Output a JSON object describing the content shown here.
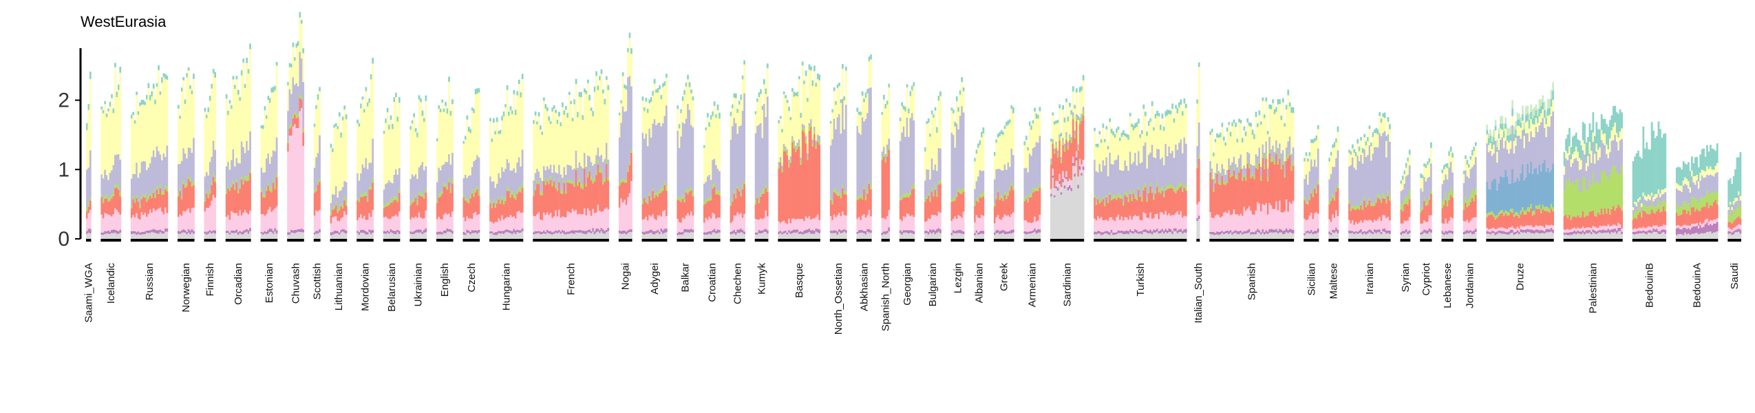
{
  "chart_data": {
    "type": "stacked-bar",
    "title": "WestEurasia",
    "xlabel": "",
    "ylabel": "",
    "ylim": [
      0,
      2.75
    ],
    "yticks": [
      0,
      1,
      2
    ],
    "grid": false,
    "legend": "none",
    "component_colors": [
      "#d9d9d9",
      "#bc80bd",
      "#fccde5",
      "#fb8072",
      "#b3de69",
      "#80b1d3",
      "#bebada",
      "#ffffb3",
      "#8dd3c7",
      "#fdb462",
      "#ccebc5"
    ],
    "note": "Values per population are approximate mean stacked heights read from the figure; each population is drawn as many individual sample bars.",
    "populations": [
      {
        "name": "Saami_WGA",
        "n": 3,
        "layers": [
          0.08,
          0.05,
          0.2,
          0.1,
          0.05,
          0.0,
          0.6,
          0.8,
          0.1,
          0.0,
          0.0
        ]
      },
      {
        "name": "Icelandic",
        "n": 12,
        "layers": [
          0.08,
          0.04,
          0.25,
          0.25,
          0.05,
          0.0,
          0.35,
          0.95,
          0.06,
          0.0,
          0.0
        ]
      },
      {
        "name": "Russian",
        "n": 22,
        "layers": [
          0.08,
          0.04,
          0.25,
          0.22,
          0.05,
          0.0,
          0.45,
          0.95,
          0.06,
          0.0,
          0.0
        ]
      },
      {
        "name": "Norwegian",
        "n": 10,
        "layers": [
          0.08,
          0.04,
          0.25,
          0.35,
          0.05,
          0.0,
          0.45,
          0.95,
          0.06,
          0.0,
          0.0
        ]
      },
      {
        "name": "Finnish",
        "n": 7,
        "layers": [
          0.08,
          0.04,
          0.45,
          0.2,
          0.05,
          0.0,
          0.35,
          0.95,
          0.06,
          0.0,
          0.0
        ]
      },
      {
        "name": "Orcadian",
        "n": 15,
        "layers": [
          0.08,
          0.04,
          0.25,
          0.4,
          0.05,
          0.0,
          0.4,
          0.95,
          0.06,
          0.0,
          0.0
        ]
      },
      {
        "name": "Estonian",
        "n": 10,
        "layers": [
          0.08,
          0.04,
          0.25,
          0.3,
          0.05,
          0.0,
          0.4,
          0.8,
          0.06,
          0.0,
          0.0
        ]
      },
      {
        "name": "Chuvash",
        "n": 10,
        "layers": [
          0.08,
          0.04,
          1.3,
          0.15,
          0.05,
          0.0,
          0.5,
          0.45,
          0.06,
          0.0,
          0.0
        ]
      },
      {
        "name": "Scottish",
        "n": 4,
        "layers": [
          0.08,
          0.04,
          0.3,
          0.35,
          0.05,
          0.0,
          0.45,
          0.7,
          0.06,
          0.0,
          0.0
        ]
      },
      {
        "name": "Lithuanian",
        "n": 10,
        "layers": [
          0.08,
          0.04,
          0.2,
          0.15,
          0.05,
          0.0,
          0.2,
          0.9,
          0.06,
          0.0,
          0.0
        ]
      },
      {
        "name": "Mordovian",
        "n": 10,
        "layers": [
          0.08,
          0.04,
          0.2,
          0.3,
          0.05,
          0.0,
          0.4,
          0.9,
          0.06,
          0.0,
          0.0
        ]
      },
      {
        "name": "Belarusian",
        "n": 10,
        "layers": [
          0.08,
          0.04,
          0.2,
          0.2,
          0.05,
          0.0,
          0.3,
          0.9,
          0.06,
          0.0,
          0.0
        ]
      },
      {
        "name": "Ukrainian",
        "n": 10,
        "layers": [
          0.08,
          0.04,
          0.2,
          0.25,
          0.05,
          0.0,
          0.35,
          0.8,
          0.06,
          0.0,
          0.0
        ]
      },
      {
        "name": "English",
        "n": 10,
        "layers": [
          0.08,
          0.04,
          0.2,
          0.35,
          0.05,
          0.0,
          0.35,
          0.8,
          0.06,
          0.0,
          0.0
        ]
      },
      {
        "name": "Czech",
        "n": 10,
        "layers": [
          0.08,
          0.04,
          0.2,
          0.3,
          0.05,
          0.0,
          0.35,
          0.75,
          0.06,
          0.0,
          0.0
        ]
      },
      {
        "name": "Hungarian",
        "n": 20,
        "layers": [
          0.08,
          0.04,
          0.2,
          0.3,
          0.05,
          0.0,
          0.35,
          0.8,
          0.06,
          0.0,
          0.0
        ]
      },
      {
        "name": "French",
        "n": 45,
        "layers": [
          0.08,
          0.04,
          0.25,
          0.45,
          0.05,
          0.0,
          0.2,
          0.85,
          0.06,
          0.0,
          0.0
        ]
      },
      {
        "name": "Nogai",
        "n": 8,
        "layers": [
          0.08,
          0.04,
          0.5,
          0.3,
          0.05,
          0.0,
          1.0,
          0.4,
          0.06,
          0.0,
          0.0
        ]
      },
      {
        "name": "Adygei",
        "n": 15,
        "layers": [
          0.08,
          0.04,
          0.2,
          0.3,
          0.05,
          0.0,
          0.95,
          0.45,
          0.06,
          0.0,
          0.0
        ]
      },
      {
        "name": "Balkar",
        "n": 10,
        "layers": [
          0.08,
          0.04,
          0.2,
          0.3,
          0.05,
          0.0,
          1.0,
          0.4,
          0.06,
          0.0,
          0.0
        ]
      },
      {
        "name": "Croatian",
        "n": 10,
        "layers": [
          0.08,
          0.04,
          0.2,
          0.3,
          0.05,
          0.0,
          0.3,
          0.75,
          0.06,
          0.0,
          0.0
        ]
      },
      {
        "name": "Chechen",
        "n": 9,
        "layers": [
          0.08,
          0.04,
          0.2,
          0.3,
          0.05,
          0.0,
          1.0,
          0.35,
          0.06,
          0.0,
          0.0
        ]
      },
      {
        "name": "Kumyk",
        "n": 8,
        "layers": [
          0.08,
          0.04,
          0.2,
          0.3,
          0.05,
          0.0,
          0.95,
          0.35,
          0.06,
          0.0,
          0.0
        ]
      },
      {
        "name": "Basque",
        "n": 25,
        "layers": [
          0.08,
          0.04,
          0.15,
          1.0,
          0.05,
          0.0,
          0.05,
          0.7,
          0.06,
          0.0,
          0.0
        ]
      },
      {
        "name": "North_Ossetian",
        "n": 10,
        "layers": [
          0.08,
          0.04,
          0.2,
          0.3,
          0.05,
          0.0,
          1.0,
          0.35,
          0.06,
          0.0,
          0.0
        ]
      },
      {
        "name": "Abkhasian",
        "n": 9,
        "layers": [
          0.08,
          0.04,
          0.2,
          0.3,
          0.05,
          0.0,
          1.0,
          0.3,
          0.06,
          0.0,
          0.0
        ]
      },
      {
        "name": "Spanish_North",
        "n": 5,
        "layers": [
          0.08,
          0.04,
          0.2,
          0.8,
          0.05,
          0.0,
          0.1,
          0.6,
          0.06,
          0.0,
          0.0
        ]
      },
      {
        "name": "Georgian",
        "n": 9,
        "layers": [
          0.08,
          0.04,
          0.2,
          0.3,
          0.05,
          0.0,
          0.95,
          0.35,
          0.06,
          0.0,
          0.0
        ]
      },
      {
        "name": "Bulgarian",
        "n": 10,
        "layers": [
          0.08,
          0.04,
          0.2,
          0.3,
          0.05,
          0.0,
          0.35,
          0.6,
          0.06,
          0.0,
          0.0
        ]
      },
      {
        "name": "Lezgin",
        "n": 8,
        "layers": [
          0.08,
          0.04,
          0.2,
          0.3,
          0.05,
          0.0,
          0.95,
          0.3,
          0.06,
          0.0,
          0.0
        ]
      },
      {
        "name": "Albanian",
        "n": 6,
        "layers": [
          0.08,
          0.04,
          0.2,
          0.3,
          0.05,
          0.0,
          0.3,
          0.45,
          0.06,
          0.0,
          0.0
        ]
      },
      {
        "name": "Greek",
        "n": 12,
        "layers": [
          0.08,
          0.04,
          0.2,
          0.3,
          0.05,
          0.0,
          0.35,
          0.5,
          0.06,
          0.0,
          0.0
        ]
      },
      {
        "name": "Armenian",
        "n": 10,
        "layers": [
          0.08,
          0.04,
          0.15,
          0.35,
          0.05,
          0.0,
          0.5,
          0.4,
          0.06,
          0.0,
          0.0
        ]
      },
      {
        "name": "Sardinian",
        "n": 20,
        "layers": [
          0.85,
          0.04,
          0.1,
          0.45,
          0.05,
          0.0,
          0.05,
          0.35,
          0.06,
          0.0,
          0.0
        ]
      },
      {
        "name": "Turkish",
        "n": 55,
        "layers": [
          0.08,
          0.04,
          0.2,
          0.3,
          0.05,
          0.0,
          0.5,
          0.45,
          0.06,
          0.0,
          0.0
        ]
      },
      {
        "name": "Italian_South",
        "n": 2,
        "layers": [
          0.3,
          0.04,
          0.2,
          0.5,
          0.05,
          0.0,
          0.4,
          0.6,
          0.06,
          0.0,
          0.0
        ]
      },
      {
        "name": "Spanish",
        "n": 50,
        "layers": [
          0.08,
          0.04,
          0.3,
          0.55,
          0.05,
          0.0,
          0.15,
          0.5,
          0.06,
          0.0,
          0.0
        ]
      },
      {
        "name": "Sicilian",
        "n": 9,
        "layers": [
          0.08,
          0.04,
          0.2,
          0.3,
          0.05,
          0.0,
          0.35,
          0.3,
          0.06,
          0.0,
          0.0
        ]
      },
      {
        "name": "Maltese",
        "n": 6,
        "layers": [
          0.08,
          0.04,
          0.2,
          0.3,
          0.05,
          0.0,
          0.4,
          0.25,
          0.06,
          0.0,
          0.0
        ]
      },
      {
        "name": "Iranian",
        "n": 25,
        "layers": [
          0.08,
          0.04,
          0.15,
          0.25,
          0.05,
          0.0,
          0.7,
          0.2,
          0.06,
          0.0,
          0.0
        ]
      },
      {
        "name": "Syrian",
        "n": 6,
        "layers": [
          0.08,
          0.04,
          0.15,
          0.2,
          0.1,
          0.0,
          0.25,
          0.15,
          0.06,
          0.0,
          0.0
        ]
      },
      {
        "name": "Cypriot",
        "n": 7,
        "layers": [
          0.08,
          0.04,
          0.15,
          0.25,
          0.05,
          0.0,
          0.3,
          0.2,
          0.06,
          0.0,
          0.0
        ]
      },
      {
        "name": "Lebanese",
        "n": 7,
        "layers": [
          0.08,
          0.04,
          0.15,
          0.25,
          0.1,
          0.0,
          0.3,
          0.15,
          0.06,
          0.0,
          0.0
        ]
      },
      {
        "name": "Jordanian",
        "n": 8,
        "layers": [
          0.08,
          0.04,
          0.15,
          0.25,
          0.1,
          0.0,
          0.35,
          0.15,
          0.06,
          0.0,
          0.0
        ]
      },
      {
        "name": "Druze",
        "n": 40,
        "layers": [
          0.08,
          0.04,
          0.05,
          0.2,
          0.05,
          0.5,
          0.55,
          0.15,
          0.1,
          0.0,
          0.1
        ]
      },
      {
        "name": "Palestinian",
        "n": 35,
        "layers": [
          0.08,
          0.04,
          0.05,
          0.2,
          0.5,
          0.0,
          0.35,
          0.15,
          0.25,
          0.0,
          0.0
        ]
      },
      {
        "name": "BedouinB",
        "n": 20,
        "layers": [
          0.08,
          0.04,
          0.05,
          0.2,
          0.1,
          0.0,
          0.1,
          0.05,
          0.85,
          0.0,
          0.0
        ]
      },
      {
        "name": "BedouinA",
        "n": 25,
        "layers": [
          0.08,
          0.1,
          0.05,
          0.2,
          0.15,
          0.0,
          0.25,
          0.1,
          0.25,
          0.0,
          0.0
        ]
      },
      {
        "name": "Saudi",
        "n": 8,
        "layers": [
          0.08,
          0.04,
          0.05,
          0.1,
          0.15,
          0.0,
          0.1,
          0.05,
          0.45,
          0.0,
          0.0
        ]
      }
    ]
  }
}
